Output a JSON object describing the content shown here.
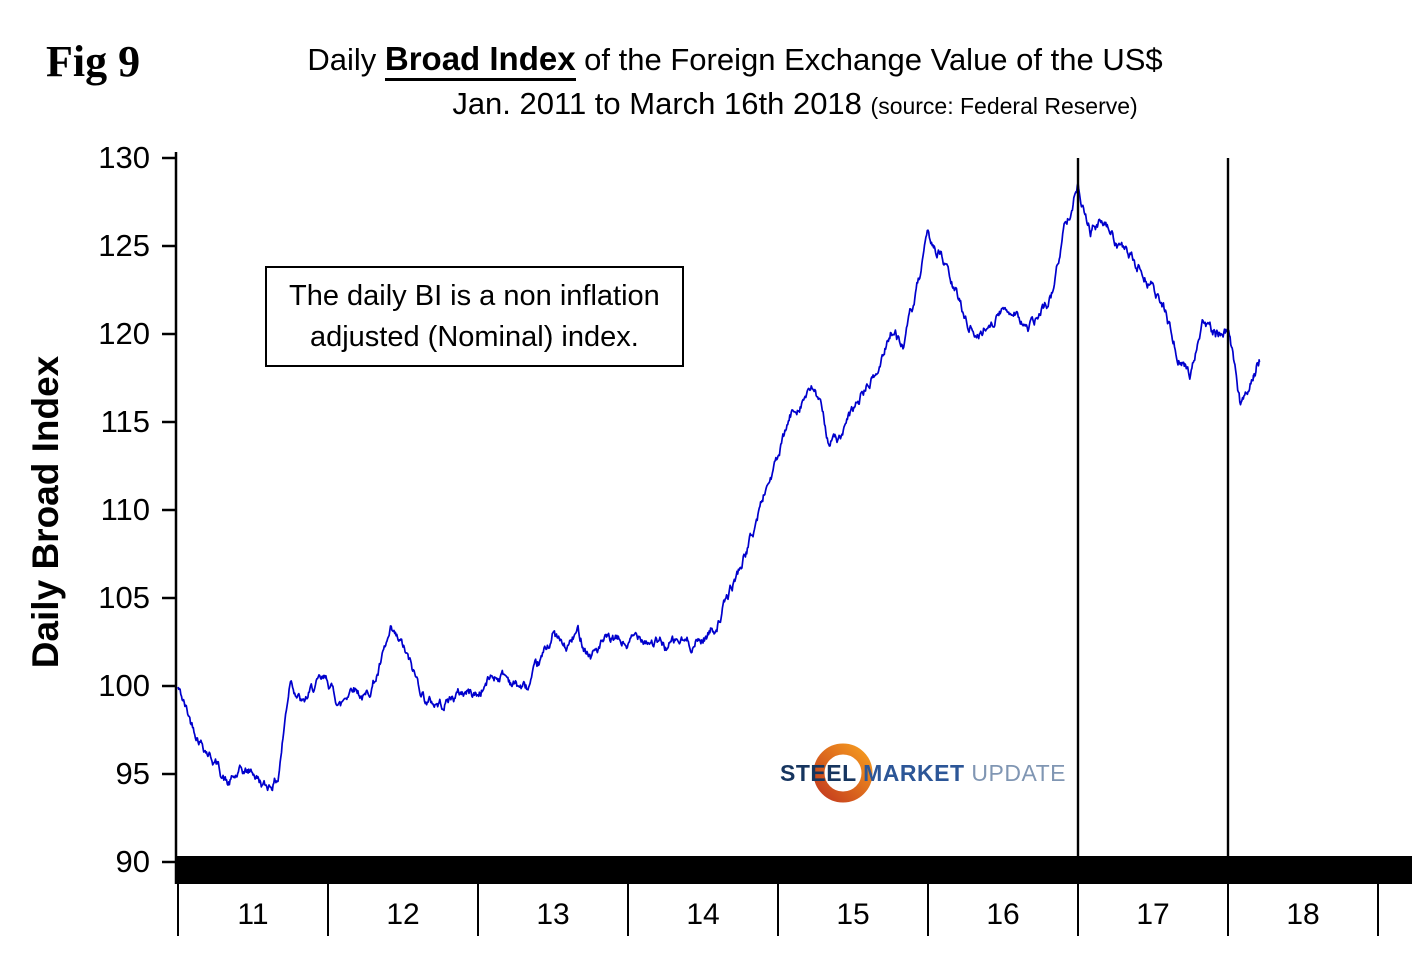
{
  "figure": {
    "label": "Fig 9"
  },
  "title": {
    "prefix": "Daily ",
    "emphasis": "Broad Index",
    "suffix": " of the Foreign Exchange Value of the US$",
    "line2": "Jan. 2011 to March 16th 2018 ",
    "source": "(source: Federal Reserve)"
  },
  "annotation": {
    "line1": "The daily BI is a non inflation",
    "line2": "adjusted (Nominal) index."
  },
  "logo": {
    "word1": "STEEL",
    "word2": "MARKET",
    "word3": "UPDATE",
    "ring_color_top": "#f59a1e",
    "ring_color_bottom": "#c43b1e"
  },
  "chart_data": {
    "type": "line",
    "title": "Daily Broad Index of the Foreign Exchange Value of the US$, Jan. 2011 to March 16th 2018",
    "source": "Federal Reserve",
    "xlabel": "",
    "ylabel": "Daily Broad Index",
    "ylim": [
      90,
      130
    ],
    "y_ticks": [
      90,
      95,
      100,
      105,
      110,
      115,
      120,
      125,
      130
    ],
    "x_tick_labels": [
      "11",
      "12",
      "13",
      "14",
      "15",
      "16",
      "17",
      "18"
    ],
    "x_domain_years": [
      2011.0,
      2019.2
    ],
    "grid": false,
    "legend": false,
    "line_color": "#0000CC",
    "vertical_lines_years": [
      2017.0,
      2018.0
    ],
    "series": [
      {
        "name": "Daily Broad Index (Nominal)",
        "x_start": "2011-01",
        "x_interval": "month",
        "values": [
          99.9,
          98.0,
          96.8,
          95.7,
          94.4,
          95.0,
          95.1,
          94.2,
          94.8,
          100.6,
          98.9,
          100.0,
          100.2,
          98.9,
          100.2,
          99.3,
          100.8,
          102.8,
          102.1,
          100.4,
          99.1,
          99.0,
          99.4,
          99.7,
          99.5,
          100.5,
          100.7,
          100.1,
          99.8,
          101.2,
          103.0,
          102.0,
          103.0,
          101.8,
          102.4,
          102.5,
          102.3,
          103.0,
          102.6,
          102.2,
          102.5,
          102.4,
          102.7,
          103.4,
          105.0,
          106.8,
          108.7,
          111.2,
          112.9,
          115.2,
          116.5,
          116.8,
          114.1,
          114.0,
          115.5,
          116.9,
          117.8,
          120.3,
          119.4,
          122.0,
          125.3,
          124.6,
          122.6,
          121.0,
          119.8,
          120.8,
          121.3,
          121.5,
          120.2,
          121.0,
          122.4,
          126.4,
          128.6,
          126.0,
          126.3,
          125.3,
          124.4,
          123.6,
          122.7,
          121.2,
          118.8,
          117.8,
          120.9,
          119.9,
          120.2,
          115.8,
          117.9
        ],
        "end_year_fraction": 2018.21,
        "end_value": 118.4
      }
    ]
  }
}
